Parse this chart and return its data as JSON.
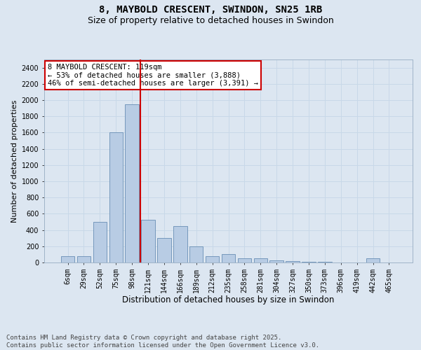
{
  "title": "8, MAYBOLD CRESCENT, SWINDON, SN25 1RB",
  "subtitle": "Size of property relative to detached houses in Swindon",
  "xlabel": "Distribution of detached houses by size in Swindon",
  "ylabel": "Number of detached properties",
  "bar_color": "#b8cce4",
  "bar_edge_color": "#5580aa",
  "grid_color": "#c8d8e8",
  "bg_color": "#dce6f1",
  "vline_color": "#cc0000",
  "vline_idx": 5,
  "annotation_text": "8 MAYBOLD CRESCENT: 119sqm\n← 53% of detached houses are smaller (3,888)\n46% of semi-detached houses are larger (3,391) →",
  "footer_text": "Contains HM Land Registry data © Crown copyright and database right 2025.\nContains public sector information licensed under the Open Government Licence v3.0.",
  "categories": [
    "6sqm",
    "29sqm",
    "52sqm",
    "75sqm",
    "98sqm",
    "121sqm",
    "144sqm",
    "166sqm",
    "189sqm",
    "212sqm",
    "235sqm",
    "258sqm",
    "281sqm",
    "304sqm",
    "327sqm",
    "350sqm",
    "373sqm",
    "396sqm",
    "419sqm",
    "442sqm",
    "465sqm"
  ],
  "values": [
    75,
    75,
    500,
    1600,
    1950,
    530,
    300,
    450,
    200,
    75,
    100,
    55,
    55,
    30,
    20,
    10,
    5,
    3,
    2,
    50,
    2
  ],
  "ylim": [
    0,
    2500
  ],
  "yticks": [
    0,
    200,
    400,
    600,
    800,
    1000,
    1200,
    1400,
    1600,
    1800,
    2000,
    2200,
    2400
  ],
  "title_fontsize": 10,
  "subtitle_fontsize": 9,
  "xlabel_fontsize": 8.5,
  "ylabel_fontsize": 8,
  "tick_fontsize": 7,
  "annotation_fontsize": 7.5,
  "footer_fontsize": 6.5
}
